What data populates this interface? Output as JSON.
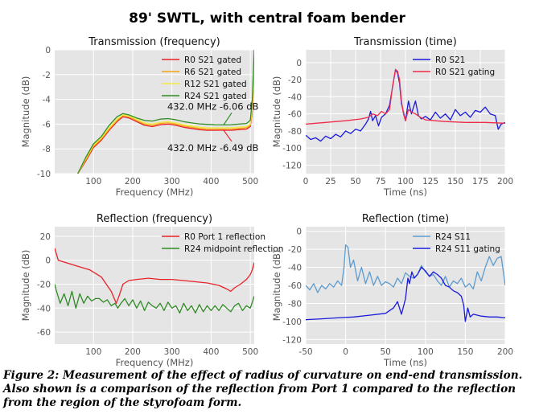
{
  "figure": {
    "suptitle": "89' SWTL, with central foam bender",
    "caption": "Figure 2: Measurement of the effect of radius of curvature on end-end transmission. Also shown is a comparison of the reflection from Port 1 compared to the reflection from the region of the styrofoam form."
  },
  "colors": {
    "axes_bg": "#e5e5e5",
    "grid": "#ffffff",
    "red": "#e8222a",
    "orange": "#f7a21a",
    "yellow": "#f0ec3a",
    "green": "#2f8c24",
    "blue": "#1a1adb",
    "steelblue": "#5b9bcf",
    "pink_red": "#ee2c4a"
  },
  "chart_data": [
    {
      "id": "tf",
      "type": "line",
      "title": "Transmission (frequency)",
      "xlabel": "Frequency (MHz)",
      "ylabel": "Magnitude (dB)",
      "xlim": [
        1,
        510
      ],
      "ylim": [
        -10,
        0
      ],
      "xticks": [
        100,
        200,
        300,
        400,
        500
      ],
      "yticks": [
        -10,
        -8,
        -6,
        -4,
        -2,
        0
      ],
      "legend": "top-right",
      "series": [
        {
          "name": "R0 S21 gated",
          "color": "#e8222a",
          "x": [
            60,
            80,
            100,
            120,
            140,
            160,
            175,
            190,
            210,
            230,
            250,
            270,
            290,
            310,
            330,
            350,
            370,
            390,
            410,
            432,
            450,
            470,
            490,
            500,
            505,
            510
          ],
          "y": [
            -10.0,
            -9.0,
            -7.9,
            -7.3,
            -6.5,
            -5.8,
            -5.4,
            -5.5,
            -5.8,
            -6.1,
            -6.2,
            -6.05,
            -6.0,
            -6.1,
            -6.25,
            -6.35,
            -6.45,
            -6.5,
            -6.5,
            -6.49,
            -6.5,
            -6.45,
            -6.4,
            -6.2,
            -5.0,
            -1.5
          ]
        },
        {
          "name": "R6 S21 gated",
          "color": "#f7a21a",
          "x": [
            60,
            80,
            100,
            120,
            140,
            160,
            175,
            190,
            210,
            230,
            250,
            270,
            290,
            310,
            330,
            350,
            370,
            390,
            410,
            432,
            450,
            470,
            490,
            500,
            505,
            510
          ],
          "y": [
            -10.0,
            -8.9,
            -7.8,
            -7.2,
            -6.4,
            -5.7,
            -5.3,
            -5.4,
            -5.7,
            -6.0,
            -6.1,
            -5.95,
            -5.9,
            -6.0,
            -6.15,
            -6.25,
            -6.35,
            -6.4,
            -6.4,
            -6.4,
            -6.4,
            -6.35,
            -6.3,
            -6.1,
            -4.8,
            -1.2
          ]
        },
        {
          "name": "R12 S21 gated",
          "color": "#f0ec3a",
          "x": [
            60,
            80,
            100,
            120,
            140,
            160,
            175,
            190,
            210,
            230,
            250,
            270,
            290,
            310,
            330,
            350,
            370,
            390,
            410,
            432,
            450,
            470,
            490,
            500,
            505,
            510
          ],
          "y": [
            -10.0,
            -8.8,
            -7.7,
            -7.1,
            -6.3,
            -5.6,
            -5.25,
            -5.35,
            -5.6,
            -5.9,
            -6.0,
            -5.85,
            -5.8,
            -5.9,
            -6.05,
            -6.15,
            -6.25,
            -6.3,
            -6.3,
            -6.3,
            -6.3,
            -6.25,
            -6.2,
            -6.0,
            -4.6,
            -1.0
          ]
        },
        {
          "name": "R24 S21 gated",
          "color": "#2f8c24",
          "x": [
            60,
            80,
            100,
            120,
            140,
            160,
            175,
            190,
            210,
            230,
            250,
            270,
            290,
            310,
            330,
            350,
            370,
            390,
            410,
            432,
            450,
            470,
            490,
            500,
            505,
            510
          ],
          "y": [
            -10.0,
            -8.7,
            -7.6,
            -7.0,
            -6.1,
            -5.4,
            -5.15,
            -5.25,
            -5.5,
            -5.7,
            -5.75,
            -5.6,
            -5.55,
            -5.65,
            -5.8,
            -5.9,
            -5.98,
            -6.02,
            -6.05,
            -6.06,
            -6.05,
            -6.0,
            -5.95,
            -5.7,
            -4.0,
            0.0
          ]
        }
      ],
      "annotations": [
        {
          "text": "432.0  MHz  -6.06  dB",
          "x": 432,
          "y": -6.06
        },
        {
          "text": "432.0  MHz  -6.49  dB",
          "x": 432,
          "y": -6.49
        }
      ]
    },
    {
      "id": "tt",
      "type": "line",
      "title": "Transmission (time)",
      "xlabel": "Time (ns)",
      "ylabel": "Magnitude (dB)",
      "xlim": [
        0,
        200
      ],
      "ylim": [
        -130,
        15
      ],
      "xticks": [
        0,
        25,
        50,
        75,
        100,
        125,
        150,
        175,
        200
      ],
      "yticks": [
        -120,
        -100,
        -80,
        -60,
        -40,
        -20,
        0
      ],
      "legend": "top-right",
      "series": [
        {
          "name": "R0 S21",
          "color": "#1a1adb",
          "x": [
            0,
            5,
            10,
            15,
            20,
            25,
            30,
            35,
            40,
            45,
            50,
            55,
            60,
            63,
            65,
            67,
            70,
            73,
            76,
            80,
            84,
            88,
            90,
            92,
            94,
            96,
            98,
            100,
            103,
            106,
            110,
            113,
            116,
            120,
            125,
            130,
            135,
            140,
            145,
            150,
            155,
            160,
            165,
            170,
            175,
            180,
            185,
            190,
            193,
            196,
            200
          ],
          "y": [
            -85,
            -90,
            -88,
            -92,
            -86,
            -89,
            -84,
            -87,
            -80,
            -83,
            -78,
            -80,
            -72,
            -66,
            -57,
            -68,
            -62,
            -74,
            -64,
            -60,
            -50,
            -22,
            -8,
            -12,
            -24,
            -48,
            -58,
            -68,
            -45,
            -60,
            -45,
            -62,
            -66,
            -63,
            -67,
            -58,
            -65,
            -60,
            -67,
            -55,
            -62,
            -58,
            -64,
            -56,
            -58,
            -52,
            -60,
            -62,
            -78,
            -72,
            -70
          ]
        },
        {
          "name": "R0 S21 gating",
          "color": "#ee2c4a",
          "x": [
            0,
            20,
            40,
            55,
            63,
            67,
            72,
            76,
            80,
            84,
            87,
            90,
            92,
            94,
            96,
            98,
            100,
            103,
            106,
            110,
            115,
            120,
            130,
            140,
            160,
            180,
            200
          ],
          "y": [
            -72,
            -70,
            -68,
            -66,
            -64,
            -60,
            -62,
            -57,
            -60,
            -55,
            -28,
            -8,
            -10,
            -20,
            -45,
            -60,
            -68,
            -55,
            -58,
            -60,
            -64,
            -67,
            -68,
            -69,
            -70,
            -70,
            -71
          ]
        }
      ]
    },
    {
      "id": "rf",
      "type": "line",
      "title": "Reflection (frequency)",
      "xlabel": "Frequency (MHz)",
      "ylabel": "Magnitude (dB)",
      "xlim": [
        1,
        510
      ],
      "ylim": [
        -70,
        28
      ],
      "xticks": [
        100,
        200,
        300,
        400,
        500
      ],
      "yticks": [
        -60,
        -40,
        -20,
        0,
        20
      ],
      "legend": "top-right",
      "series": [
        {
          "name": "R0 Port 1 reflection",
          "color": "#e8222a",
          "x": [
            1,
            10,
            30,
            60,
            90,
            120,
            145,
            158,
            165,
            175,
            190,
            210,
            240,
            270,
            300,
            330,
            360,
            390,
            420,
            440,
            450,
            460,
            475,
            490,
            500,
            505,
            510
          ],
          "y": [
            10,
            0,
            -2,
            -5,
            -8,
            -14,
            -26,
            -36,
            -30,
            -20,
            -17,
            -16,
            -15,
            -16,
            -16,
            -17,
            -18,
            -19,
            -21,
            -24,
            -26,
            -23,
            -20,
            -16,
            -12,
            -8,
            -2
          ]
        },
        {
          "name": "R24 midpoint reflection",
          "color": "#2f8c24",
          "x": [
            1,
            5,
            15,
            25,
            35,
            45,
            55,
            65,
            75,
            85,
            95,
            105,
            115,
            125,
            135,
            145,
            155,
            162,
            170,
            180,
            190,
            200,
            210,
            220,
            230,
            240,
            250,
            260,
            270,
            280,
            290,
            300,
            310,
            320,
            330,
            340,
            350,
            360,
            370,
            380,
            390,
            400,
            410,
            420,
            430,
            440,
            450,
            460,
            470,
            480,
            490,
            500,
            505,
            510
          ],
          "y": [
            -20,
            -25,
            -36,
            -28,
            -38,
            -26,
            -40,
            -28,
            -36,
            -30,
            -34,
            -32,
            -32,
            -35,
            -33,
            -38,
            -36,
            -40,
            -36,
            -32,
            -38,
            -33,
            -40,
            -34,
            -42,
            -35,
            -38,
            -40,
            -36,
            -42,
            -35,
            -40,
            -38,
            -44,
            -36,
            -42,
            -38,
            -44,
            -37,
            -43,
            -38,
            -42,
            -38,
            -42,
            -37,
            -40,
            -43,
            -38,
            -36,
            -42,
            -38,
            -40,
            -35,
            -30
          ]
        }
      ]
    },
    {
      "id": "rt",
      "type": "line",
      "title": "Reflection (time)",
      "xlabel": "Time (ns)",
      "ylabel": "Magnitude (dB)",
      "xlim": [
        -50,
        200
      ],
      "ylim": [
        -125,
        5
      ],
      "xticks": [
        -50,
        0,
        50,
        100,
        150,
        200
      ],
      "yticks": [
        -120,
        -100,
        -80,
        -60,
        -40,
        -20,
        0
      ],
      "legend": "top-right",
      "series": [
        {
          "name": "R24 S11",
          "color": "#5b9bcf",
          "x": [
            -50,
            -45,
            -40,
            -35,
            -30,
            -25,
            -20,
            -15,
            -10,
            -5,
            -2,
            0,
            3,
            6,
            10,
            15,
            20,
            25,
            30,
            35,
            40,
            45,
            50,
            55,
            60,
            65,
            70,
            75,
            80,
            85,
            90,
            95,
            100,
            105,
            110,
            115,
            120,
            125,
            130,
            135,
            140,
            145,
            150,
            155,
            160,
            165,
            170,
            175,
            180,
            185,
            190,
            195,
            200
          ],
          "y": [
            -60,
            -65,
            -58,
            -68,
            -60,
            -64,
            -58,
            -62,
            -55,
            -60,
            -40,
            -15,
            -18,
            -40,
            -32,
            -55,
            -40,
            -58,
            -45,
            -60,
            -50,
            -60,
            -56,
            -58,
            -62,
            -52,
            -58,
            -46,
            -50,
            -52,
            -48,
            -38,
            -45,
            -50,
            -48,
            -55,
            -60,
            -50,
            -62,
            -55,
            -58,
            -52,
            -62,
            -58,
            -64,
            -45,
            -55,
            -40,
            -28,
            -38,
            -30,
            -28,
            -60
          ]
        },
        {
          "name": "R24 S11 gating",
          "color": "#1a1adb",
          "x": [
            -50,
            -30,
            -10,
            10,
            30,
            50,
            60,
            65,
            70,
            75,
            78,
            80,
            83,
            86,
            90,
            95,
            100,
            105,
            110,
            115,
            120,
            125,
            130,
            135,
            140,
            145,
            148,
            150,
            153,
            156,
            160,
            170,
            180,
            190,
            200
          ],
          "y": [
            -98,
            -97,
            -96,
            -95,
            -93,
            -91,
            -85,
            -78,
            -92,
            -75,
            -52,
            -58,
            -45,
            -52,
            -48,
            -40,
            -44,
            -50,
            -45,
            -48,
            -52,
            -60,
            -62,
            -66,
            -68,
            -72,
            -82,
            -100,
            -85,
            -95,
            -92,
            -94,
            -95,
            -95,
            -96
          ]
        }
      ]
    }
  ]
}
